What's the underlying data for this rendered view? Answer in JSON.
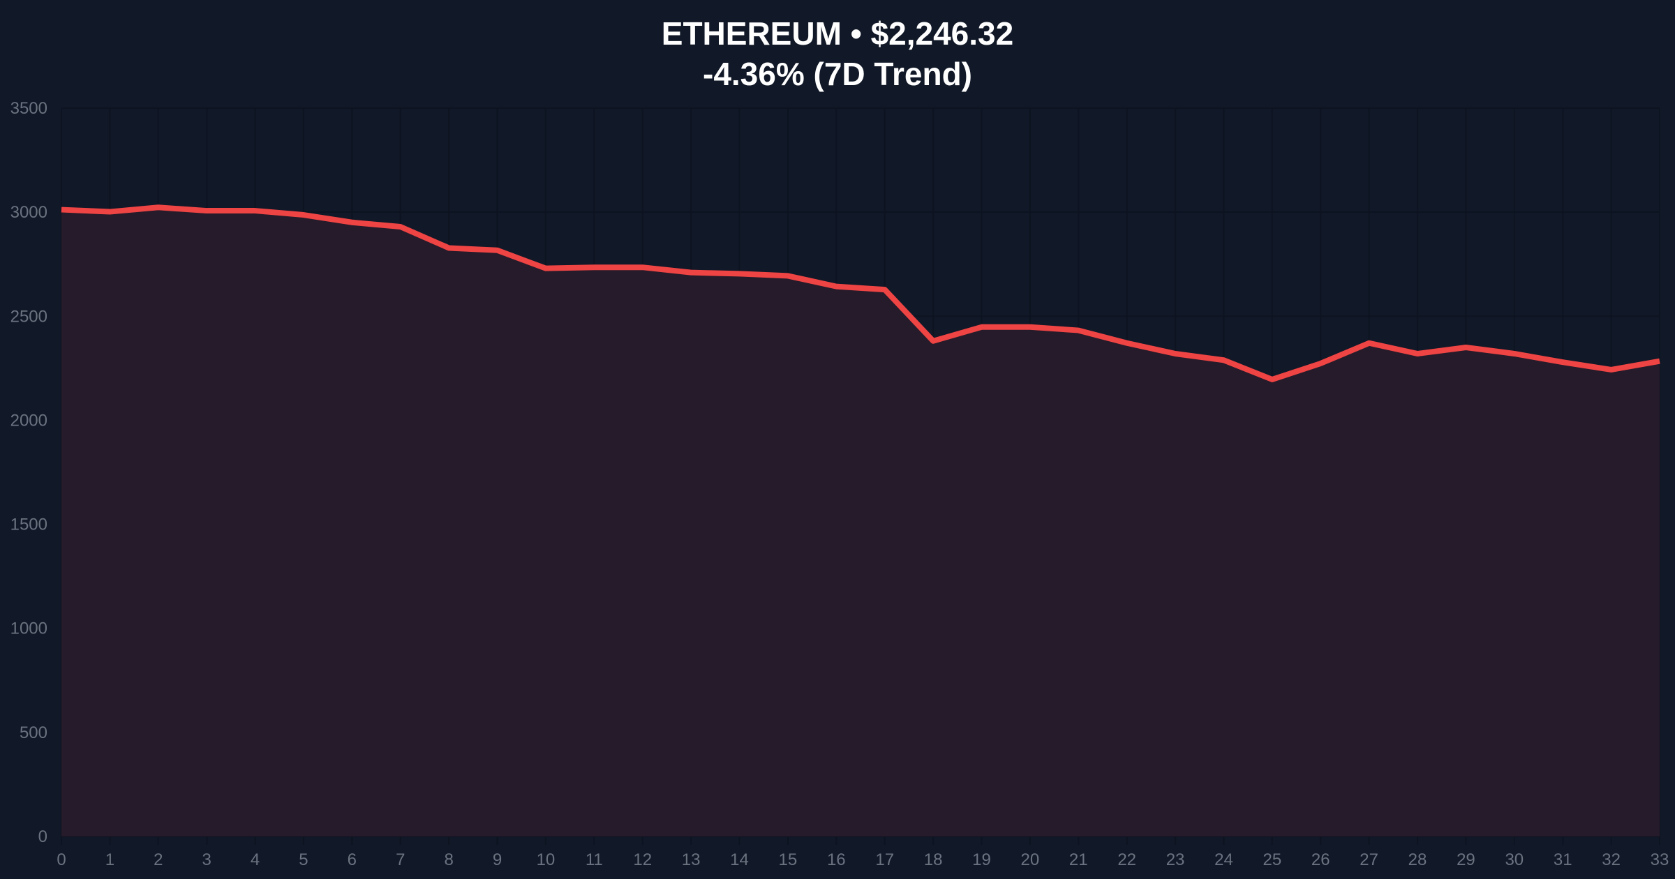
{
  "chart_data": {
    "type": "area",
    "title": "ETHEREUM • $2,246.32",
    "subtitle": "-4.36% (7D Trend)",
    "xlabel": "",
    "ylabel": "",
    "x": [
      0,
      1,
      2,
      3,
      4,
      5,
      6,
      7,
      8,
      9,
      10,
      11,
      12,
      13,
      14,
      15,
      16,
      17,
      18,
      19,
      20,
      21,
      22,
      23,
      24,
      25,
      26,
      27,
      28,
      29,
      30,
      31,
      32,
      33
    ],
    "values": [
      3012,
      3002,
      3023,
      3007,
      3007,
      2987,
      2951,
      2930,
      2828,
      2817,
      2730,
      2735,
      2735,
      2710,
      2704,
      2694,
      2643,
      2628,
      2381,
      2448,
      2448,
      2432,
      2371,
      2320,
      2289,
      2196,
      2273,
      2371,
      2320,
      2350,
      2320,
      2279,
      2243,
      2284
    ],
    "xlim": [
      0,
      33
    ],
    "ylim": [
      0,
      3500
    ],
    "yticks": [
      0,
      500,
      1000,
      1500,
      2000,
      2500,
      3000,
      3500
    ],
    "grid": true,
    "legend": "none",
    "colors": {
      "line": "#ef4444",
      "fill": "#261b2a",
      "background": "#111827",
      "grid": "#0d1320",
      "tick_text": "#6b7280"
    }
  }
}
